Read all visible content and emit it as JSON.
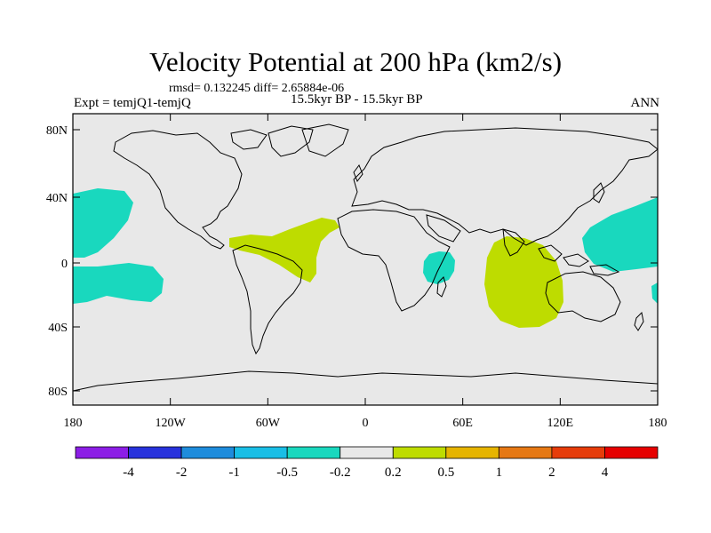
{
  "header": {
    "title": "Velocity Potential at 200 hPa (km2/s)",
    "stats": "rmsd= 0.132245 diff= 2.65884e-06",
    "left": "Expt = temjQ1-temjQ",
    "center": "15.5kyr BP - 15.5kyr BP",
    "right": "ANN"
  },
  "map": {
    "background_color": "#e8e8e8",
    "lat_ticks": [
      "80N",
      "40N",
      "0",
      "40S",
      "80S"
    ],
    "lon_ticks": [
      "180",
      "120W",
      "60W",
      "0",
      "60E",
      "120E",
      "180"
    ],
    "anomalies": [
      {
        "name": "north-pacific-negative",
        "color": "#19d8be",
        "value": "-0.5 to -0.2"
      },
      {
        "name": "south-pacific-negative",
        "color": "#19d8be",
        "value": "-0.5 to -0.2"
      },
      {
        "name": "east-africa-negative",
        "color": "#19d8be",
        "value": "-0.5 to -0.2"
      },
      {
        "name": "west-pacific-negative",
        "color": "#19d8be",
        "value": "-0.5 to -0.2"
      },
      {
        "name": "atlantic-positive",
        "color": "#bedc00",
        "value": "0.2 to 0.5"
      },
      {
        "name": "indian-ocean-positive",
        "color": "#bedc00",
        "value": "0.2 to 0.5"
      }
    ]
  },
  "colorbar": {
    "colors": [
      "#8c1ee6",
      "#2832dc",
      "#1e8cdc",
      "#19bee6",
      "#19d8be",
      "#e8e8e8",
      "#bedc00",
      "#e6b400",
      "#e67814",
      "#e63c0a",
      "#e60000"
    ],
    "labels": [
      "-4",
      "-2",
      "-1",
      "-0.5",
      "-0.2",
      "0.2",
      "0.5",
      "1",
      "2",
      "4"
    ]
  }
}
